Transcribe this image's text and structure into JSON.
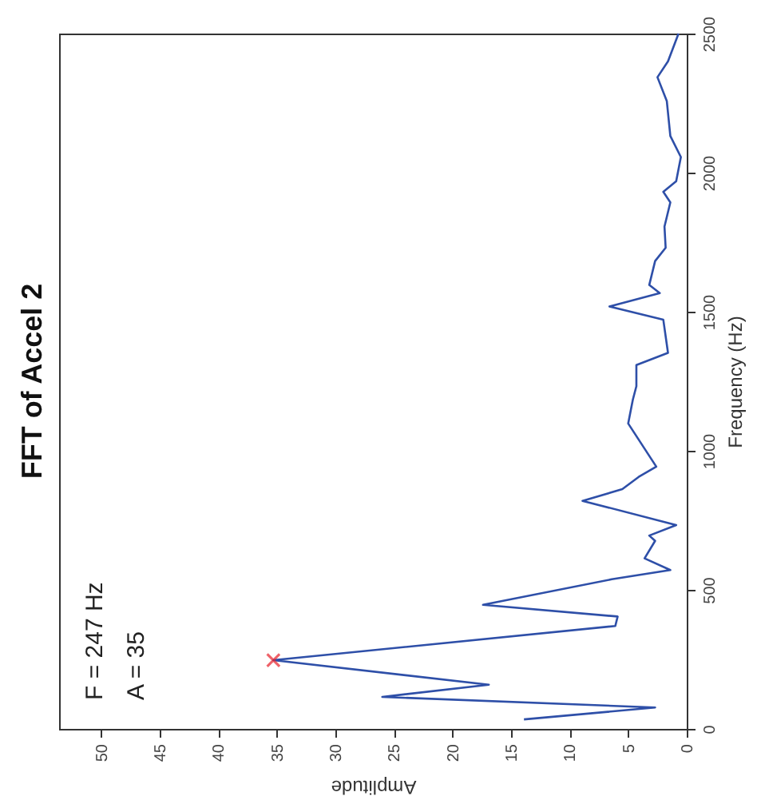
{
  "chart_data": {
    "type": "line",
    "title": "FFT of Accel 2",
    "xlabel": "Amplitude",
    "ylabel": "Frequency (Hz)",
    "xlim": [
      53.6,
      0
    ],
    "xticks": [
      0,
      5,
      10,
      15,
      20,
      25,
      30,
      35,
      40,
      45,
      50
    ],
    "ylim": [
      0,
      2500
    ],
    "yticks": [
      0,
      500,
      1000,
      1500,
      2000,
      2500
    ],
    "grid": false,
    "annotations": [
      "F = 247 Hz",
      "A = 35"
    ],
    "series": [
      {
        "type": "line",
        "color": "#2e4fa8",
        "marker": "none",
        "x": [
          13.9,
          2.7,
          26.0,
          16.9,
          35.3,
          6.1,
          5.9,
          17.4,
          6.4,
          1.4,
          3.6,
          2.7,
          3.2,
          0.9,
          8.9,
          5.5,
          4.1,
          2.6,
          5.0,
          4.6,
          4.3,
          4.3,
          1.6,
          2.0,
          6.6,
          2.3,
          3.2,
          2.7,
          1.8,
          1.9,
          1.4,
          2.0,
          0.9,
          0.5,
          1.4,
          1.7,
          2.5,
          1.6,
          0.7
        ],
        "values": [
          34,
          77,
          115,
          159,
          247,
          370,
          404,
          446,
          538,
          571,
          613,
          676,
          695,
          733,
          820,
          862,
          906,
          943,
          1098,
          1184,
          1232,
          1308,
          1352,
          1471,
          1519,
          1567,
          1596,
          1682,
          1730,
          1806,
          1893,
          1931,
          1969,
          2056,
          2132,
          2257,
          2343,
          2400,
          2500
        ]
      },
      {
        "type": "scatter",
        "color": "#e8202a",
        "marker": "cross",
        "x": [
          35.3
        ],
        "values": [
          247
        ]
      }
    ]
  }
}
